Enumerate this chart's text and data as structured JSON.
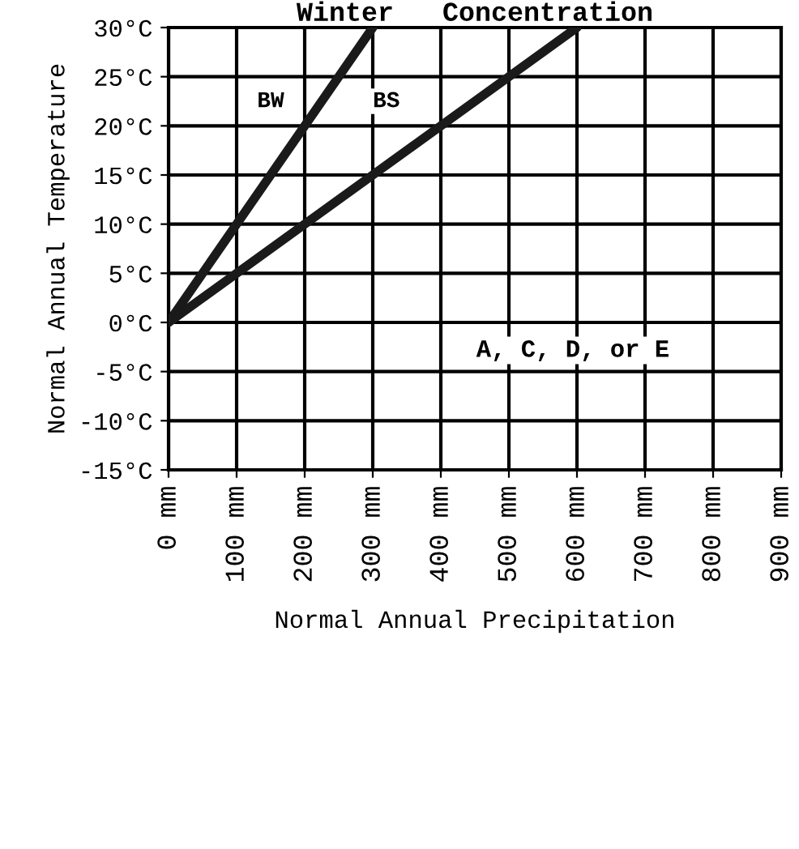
{
  "chart_data": {
    "type": "line",
    "title": "Winter   Concentration",
    "xlabel": "Normal Annual Precipitation",
    "ylabel": "Normal Annual Temperature",
    "series": [
      {
        "color": "#1a1a1a",
        "x": [
          0,
          300
        ],
        "values": [
          0,
          30
        ]
      },
      {
        "color": "#1a1a1a",
        "x": [
          0,
          600
        ],
        "values": [
          0,
          30
        ]
      }
    ],
    "xlim": [
      0,
      900
    ],
    "xticks": [
      {
        "value": 0,
        "label": "0 mm"
      },
      {
        "value": 100,
        "label": "100 mm"
      },
      {
        "value": 200,
        "label": "200 mm"
      },
      {
        "value": 300,
        "label": "300 mm"
      },
      {
        "value": 400,
        "label": "400 mm"
      },
      {
        "value": 500,
        "label": "500 mm"
      },
      {
        "value": 600,
        "label": "600 mm"
      },
      {
        "value": 700,
        "label": "700 mm"
      },
      {
        "value": 800,
        "label": "800 mm"
      },
      {
        "value": 900,
        "label": "900 mm"
      }
    ],
    "ylim": [
      -15,
      30
    ],
    "yticks": [
      {
        "value": -15,
        "label": "-15°C"
      },
      {
        "value": -10,
        "label": "-10°C"
      },
      {
        "value": -5,
        "label": "-5°C"
      },
      {
        "value": 0,
        "label": "0°C"
      },
      {
        "value": 5,
        "label": "5°C"
      },
      {
        "value": 10,
        "label": "10°C"
      },
      {
        "value": 15,
        "label": "15°C"
      },
      {
        "value": 20,
        "label": "20°C"
      },
      {
        "value": 25,
        "label": "25°C"
      },
      {
        "value": 30,
        "label": "30°C"
      }
    ],
    "annotations": [
      {
        "text": "BW",
        "x": 150,
        "y": 22.5
      },
      {
        "text": "BS",
        "x": 320,
        "y": 22.5
      },
      "A, C, D, or E"
    ],
    "grid": true,
    "marker": "none",
    "line_style": "solid",
    "legend": false
  }
}
